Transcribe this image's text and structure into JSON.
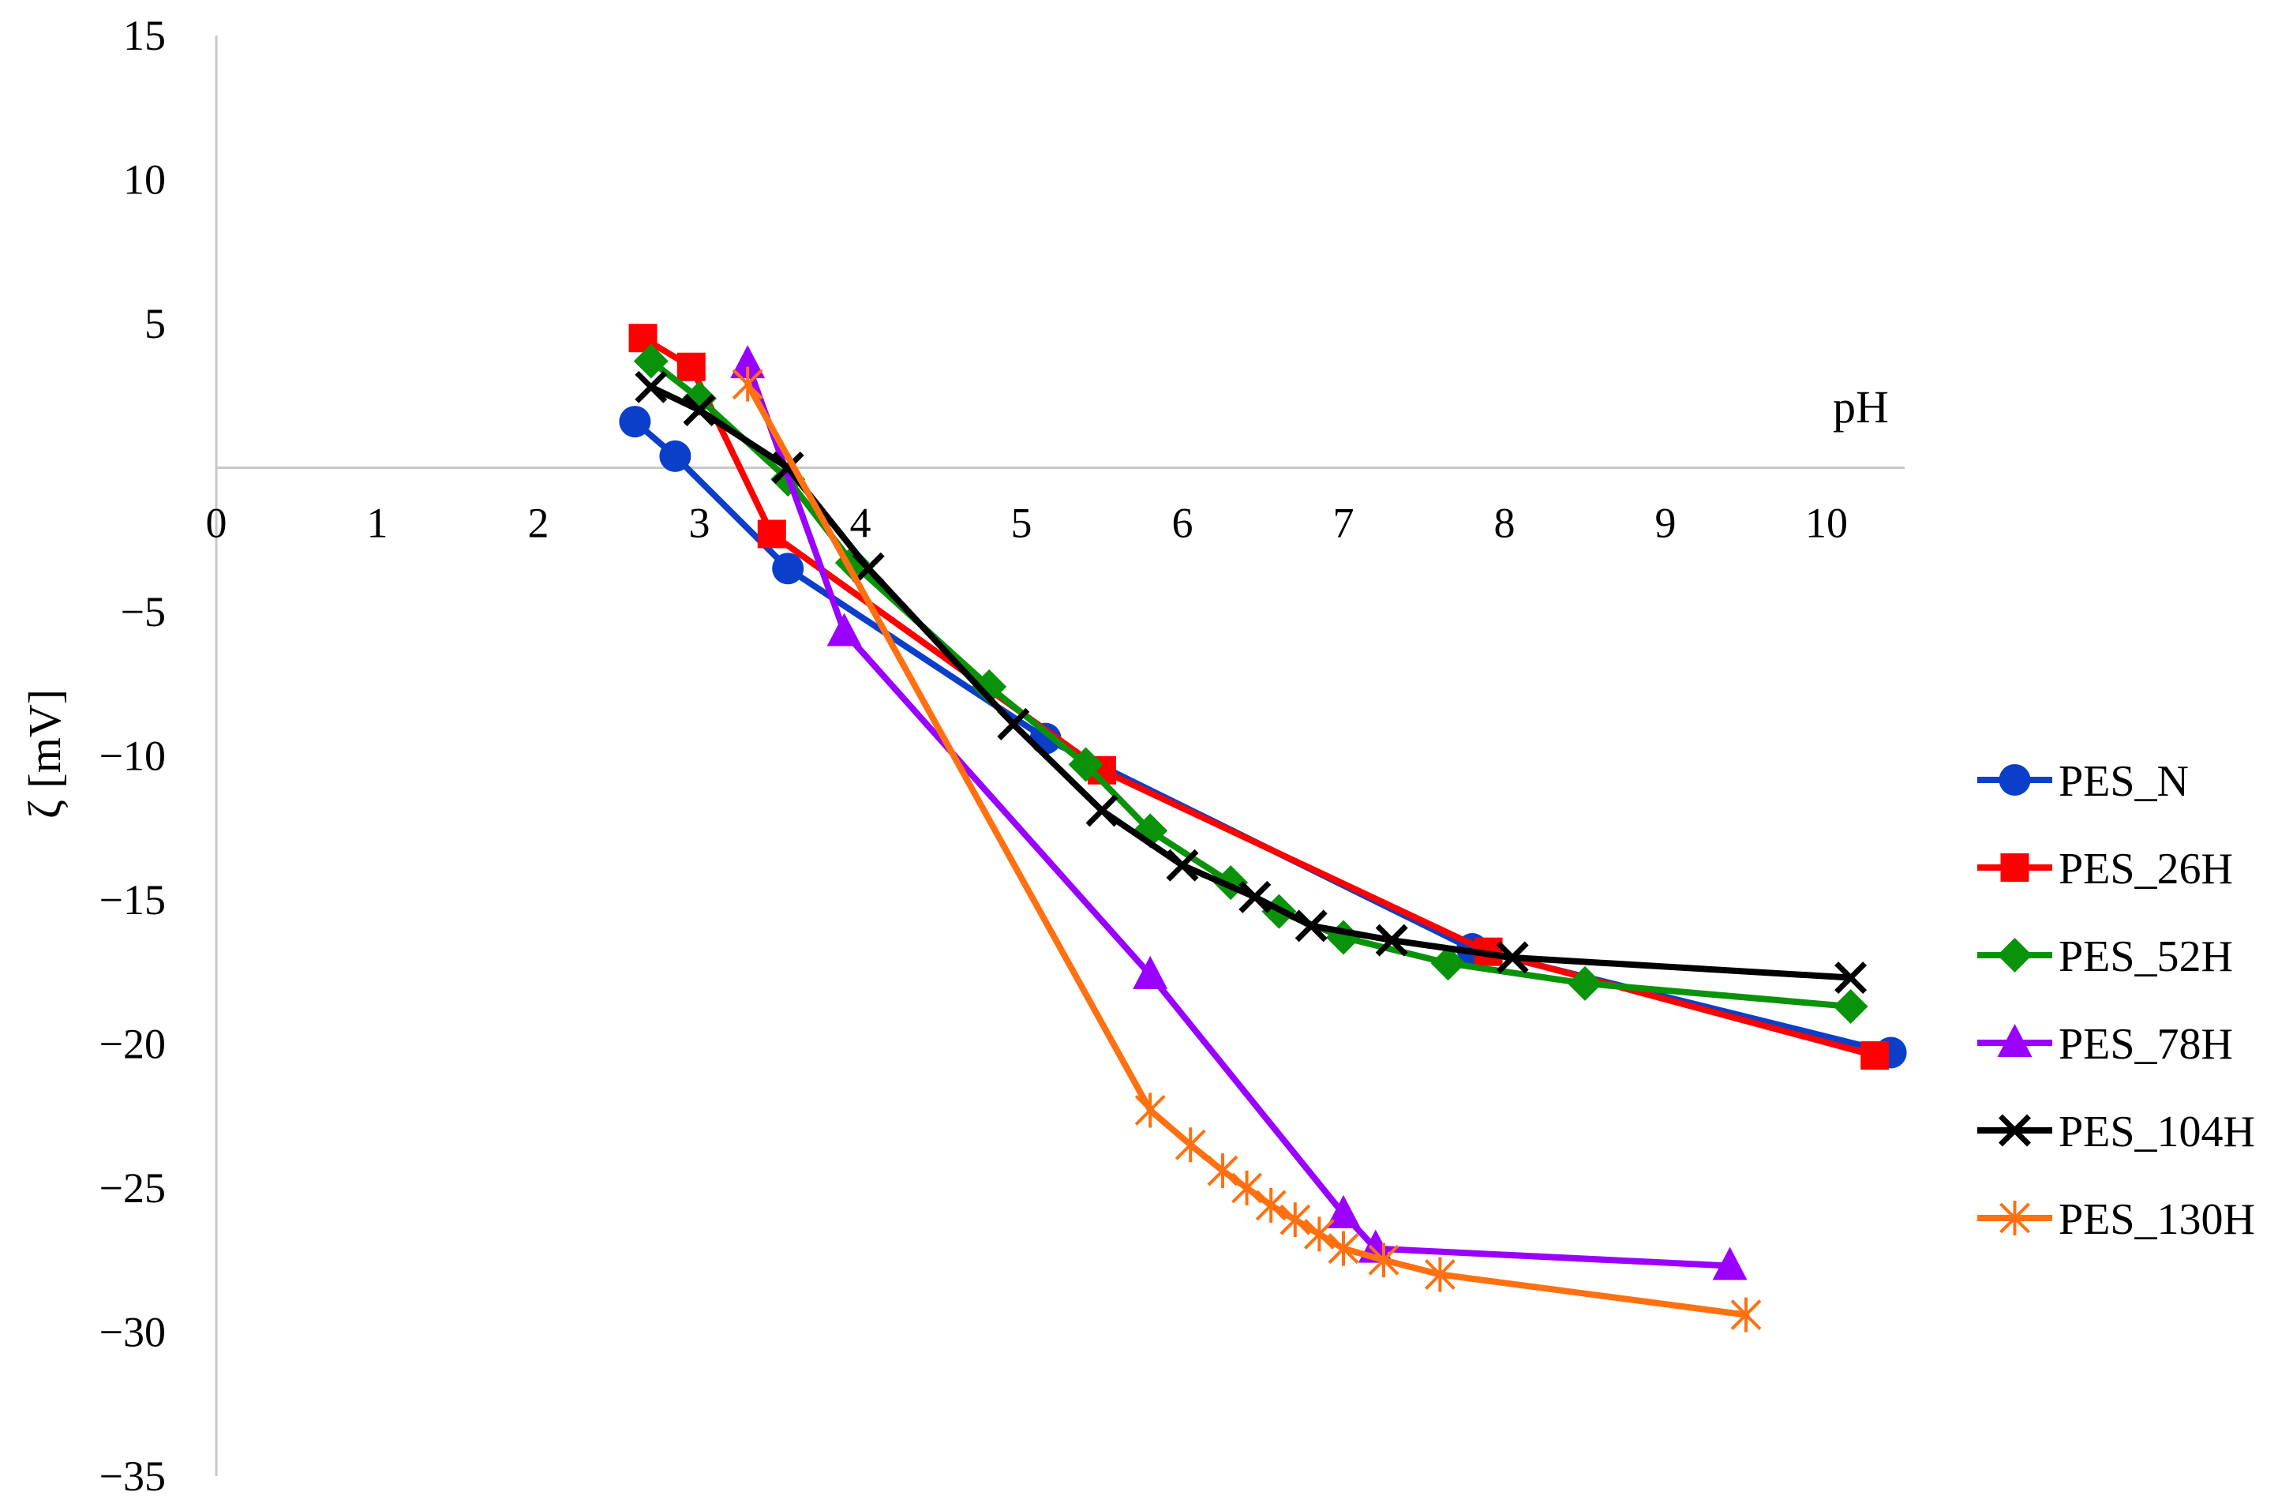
{
  "chart_data": {
    "type": "line",
    "xlabel": "pH",
    "ylabel": "ζ [mV]",
    "xlim": [
      0,
      10.5
    ],
    "ylim": [
      -35,
      15
    ],
    "x_ticks": [
      "0",
      "1",
      "2",
      "3",
      "4",
      "5",
      "6",
      "7",
      "8",
      "9",
      "10"
    ],
    "y_ticks": [
      "15",
      "10",
      "5",
      "−5",
      "−10",
      "−15",
      "−20",
      "−25",
      "−30",
      "−35"
    ],
    "grid": false,
    "legend_position": "right",
    "series": [
      {
        "name": "PES_N",
        "color": "#0b3fc9",
        "marker": "circle",
        "x": [
          2.6,
          2.85,
          3.55,
          5.15,
          7.8,
          10.4
        ],
        "y": [
          1.6,
          0.4,
          -3.5,
          -9.4,
          -16.7,
          -20.3
        ]
      },
      {
        "name": "PES_26H",
        "color": "#ff0000",
        "marker": "square",
        "x": [
          2.65,
          2.95,
          3.45,
          5.5,
          7.9,
          10.3
        ],
        "y": [
          4.5,
          3.5,
          -2.3,
          -10.5,
          -16.8,
          -20.4
        ]
      },
      {
        "name": "PES_52H",
        "color": "#0a930a",
        "marker": "diamond",
        "x": [
          2.7,
          3.0,
          3.55,
          3.95,
          4.8,
          5.4,
          5.8,
          6.3,
          6.6,
          7.0,
          7.65,
          8.5,
          10.15
        ],
        "y": [
          3.7,
          2.4,
          -0.4,
          -3.3,
          -7.6,
          -10.3,
          -12.6,
          -14.4,
          -15.4,
          -16.3,
          -17.2,
          -17.9,
          -18.7
        ]
      },
      {
        "name": "PES_78H",
        "color": "#9a00ff",
        "marker": "triangle",
        "x": [
          3.3,
          3.9,
          5.8,
          7.0,
          7.2,
          9.4
        ],
        "y": [
          3.6,
          -5.7,
          -17.6,
          -25.9,
          -27.1,
          -27.7
        ]
      },
      {
        "name": "PES_104H",
        "color": "#000000",
        "marker": "x",
        "x": [
          2.7,
          3.0,
          3.55,
          4.05,
          4.95,
          5.5,
          6.0,
          6.45,
          6.8,
          7.3,
          8.05,
          10.15
        ],
        "y": [
          2.8,
          2.0,
          0.0,
          -3.5,
          -8.9,
          -11.9,
          -13.8,
          -14.9,
          -15.9,
          -16.4,
          -17.0,
          -17.7
        ]
      },
      {
        "name": "PES_130H",
        "color": "#ff7010",
        "marker": "asterisk",
        "x": [
          3.3,
          5.8,
          6.05,
          6.25,
          6.4,
          6.55,
          6.7,
          6.85,
          7.0,
          7.25,
          7.6,
          9.5
        ],
        "y": [
          2.9,
          -22.3,
          -23.5,
          -24.4,
          -25.0,
          -25.6,
          -26.1,
          -26.6,
          -27.1,
          -27.5,
          -28.0,
          -29.4
        ]
      }
    ]
  }
}
